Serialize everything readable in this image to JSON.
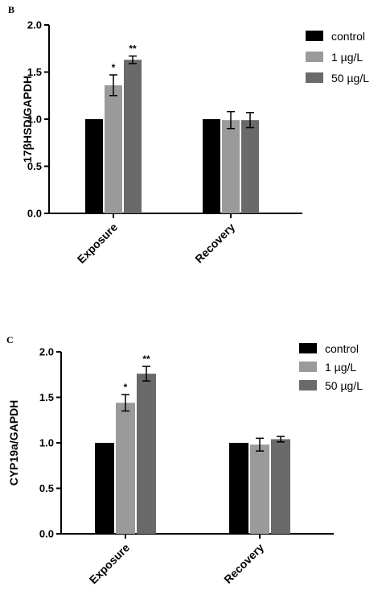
{
  "colors": {
    "control": "#000000",
    "low": "#9a9a9a",
    "high": "#6a6a6a",
    "axis": "#000000"
  },
  "chart_data": [
    {
      "panel": "B",
      "type": "bar",
      "ylabel": "17βHSD/GAPDH",
      "ylim": [
        0,
        2.0
      ],
      "yticks": [
        "0.0",
        "0.5",
        "1.0",
        "1.5",
        "2.0"
      ],
      "categories": [
        "Exposure",
        "Recovery"
      ],
      "series": [
        {
          "name": "control",
          "values": [
            1.0,
            1.0
          ],
          "errors": [
            0,
            0
          ],
          "sig": [
            "",
            ""
          ]
        },
        {
          "name": "1 µg/L",
          "values": [
            1.36,
            0.99
          ],
          "errors": [
            0.11,
            0.09
          ],
          "sig": [
            "*",
            ""
          ]
        },
        {
          "name": "50 µg/L",
          "values": [
            1.63,
            0.99
          ],
          "errors": [
            0.04,
            0.08
          ],
          "sig": [
            "**",
            ""
          ]
        }
      ],
      "legend_position": "top-right"
    },
    {
      "panel": "C",
      "type": "bar",
      "ylabel": "CYP19a/GAPDH",
      "ylim": [
        0,
        2.0
      ],
      "yticks": [
        "0.0",
        "0.5",
        "1.0",
        "1.5",
        "2.0"
      ],
      "categories": [
        "Exposure",
        "Recovery"
      ],
      "series": [
        {
          "name": "control",
          "values": [
            1.0,
            1.0
          ],
          "errors": [
            0,
            0
          ],
          "sig": [
            "",
            ""
          ]
        },
        {
          "name": "1 µg/L",
          "values": [
            1.44,
            0.98
          ],
          "errors": [
            0.09,
            0.07
          ],
          "sig": [
            "*",
            ""
          ]
        },
        {
          "name": "50 µg/L",
          "values": [
            1.76,
            1.04
          ],
          "errors": [
            0.08,
            0.03
          ],
          "sig": [
            "**",
            ""
          ]
        }
      ],
      "legend_position": "top-right"
    }
  ]
}
